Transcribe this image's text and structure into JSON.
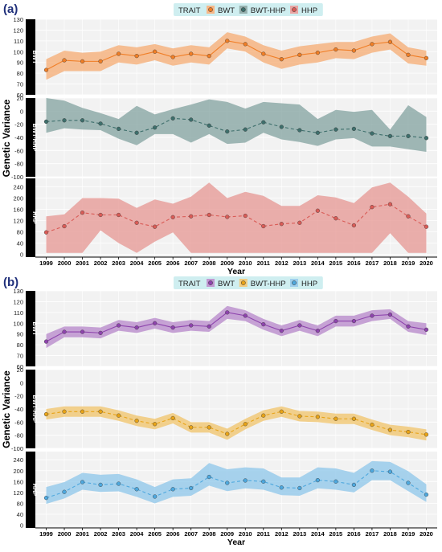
{
  "chart_data": [
    {
      "type": "line",
      "panel_label": "(a)",
      "legend_title": "TRAIT",
      "legend_position": "top",
      "xlabel": "Year",
      "ylabel": "Genetic Variance",
      "x": [
        1999,
        2000,
        2001,
        2002,
        2003,
        2004,
        2005,
        2006,
        2007,
        2008,
        2009,
        2010,
        2011,
        2012,
        2013,
        2014,
        2015,
        2016,
        2017,
        2018,
        2019,
        2020
      ],
      "series": [
        {
          "name": "BWT",
          "facet": "BWT",
          "color": "#f07e26",
          "line_style": "solid",
          "ylim": [
            60,
            130
          ],
          "yticks": [
            60,
            70,
            80,
            90,
            100,
            110,
            120,
            130
          ],
          "values": [
            83,
            92,
            91,
            91,
            98,
            96,
            100,
            95,
            98,
            96,
            110,
            107,
            98,
            93,
            97,
            99,
            102,
            101,
            107,
            109,
            97,
            94
          ],
          "lower": [
            74,
            82,
            82,
            82,
            90,
            88,
            92,
            87,
            90,
            88,
            103,
            100,
            90,
            84,
            88,
            90,
            94,
            93,
            99,
            102,
            89,
            87
          ],
          "upper": [
            93,
            101,
            99,
            100,
            106,
            104,
            107,
            103,
            106,
            104,
            118,
            114,
            106,
            101,
            105,
            107,
            109,
            109,
            114,
            117,
            104,
            101
          ]
        },
        {
          "name": "BWT-HHP",
          "facet": "BWT-HHP",
          "color": "#3e6f6c",
          "line_style": "dashed",
          "ylim": [
            -100,
            20
          ],
          "yticks": [
            -100,
            -80,
            -60,
            -40,
            -20,
            0,
            20
          ],
          "values": [
            -16,
            -14,
            -14,
            -19,
            -27,
            -33,
            -25,
            -11,
            -13,
            -22,
            -31,
            -28,
            -17,
            -24,
            -29,
            -33,
            -28,
            -27,
            -34,
            -38,
            -38,
            -41
          ],
          "lower": [
            -33,
            -26,
            -28,
            -29,
            -42,
            -52,
            -35,
            -35,
            -48,
            -35,
            -50,
            -48,
            -33,
            -43,
            -47,
            -53,
            -43,
            -41,
            -54,
            -54,
            -58,
            -62
          ],
          "upper": [
            20,
            16,
            5,
            -3,
            -12,
            8,
            -5,
            3,
            10,
            18,
            14,
            4,
            14,
            12,
            10,
            -12,
            2,
            -1,
            2,
            -28,
            9,
            -9
          ]
        },
        {
          "name": "HHP",
          "facet": "HHP",
          "color": "#d95c57",
          "line_style": "dashed",
          "ylim": [
            -10,
            270
          ],
          "yticks": [
            0,
            40,
            80,
            120,
            160,
            200,
            240
          ],
          "values": [
            78,
            100,
            148,
            140,
            140,
            112,
            98,
            132,
            135,
            140,
            133,
            137,
            100,
            108,
            112,
            155,
            128,
            103,
            168,
            178,
            135,
            98
          ],
          "lower": [
            5,
            5,
            5,
            85,
            40,
            5,
            45,
            78,
            5,
            5,
            5,
            5,
            5,
            5,
            5,
            5,
            5,
            5,
            5,
            75,
            5,
            5
          ],
          "upper": [
            135,
            142,
            200,
            200,
            198,
            165,
            195,
            180,
            205,
            255,
            200,
            222,
            208,
            172,
            172,
            210,
            202,
            182,
            238,
            255,
            205,
            145
          ]
        }
      ]
    },
    {
      "type": "line",
      "panel_label": "(b)",
      "legend_title": "TRAIT",
      "legend_position": "top",
      "xlabel": "Year",
      "ylabel": "Genetic Variance",
      "x": [
        1999,
        2000,
        2001,
        2002,
        2003,
        2004,
        2005,
        2006,
        2007,
        2008,
        2009,
        2010,
        2011,
        2012,
        2013,
        2014,
        2015,
        2016,
        2017,
        2018,
        2019,
        2020
      ],
      "series": [
        {
          "name": "BWT",
          "facet": "BWT",
          "color": "#8e44ad",
          "line_style": "solid",
          "ylim": [
            60,
            130
          ],
          "yticks": [
            60,
            70,
            80,
            90,
            100,
            110,
            120,
            130
          ],
          "values": [
            83,
            92,
            92,
            91,
            98,
            96,
            100,
            96,
            98,
            97,
            110,
            107,
            99,
            93,
            98,
            93,
            102,
            102,
            107,
            108,
            97,
            94
          ],
          "lower": [
            77,
            87,
            87,
            86,
            93,
            91,
            95,
            91,
            93,
            92,
            104,
            102,
            94,
            88,
            93,
            88,
            97,
            97,
            102,
            104,
            92,
            89
          ],
          "upper": [
            90,
            97,
            97,
            96,
            103,
            101,
            105,
            101,
            103,
            102,
            116,
            112,
            104,
            98,
            103,
            98,
            107,
            107,
            112,
            113,
            102,
            100
          ]
        },
        {
          "name": "BWT-HHP",
          "facet": "BWT-HHP",
          "color": "#e8a317",
          "line_style": "dashed",
          "ylim": [
            -100,
            20
          ],
          "yticks": [
            -100,
            -80,
            -60,
            -40,
            -20,
            0,
            20
          ],
          "values": [
            -48,
            -44,
            -44,
            -44,
            -50,
            -58,
            -63,
            -54,
            -68,
            -68,
            -78,
            -63,
            -50,
            -44,
            -51,
            -52,
            -55,
            -55,
            -64,
            -72,
            -75,
            -79
          ],
          "lower": [
            -56,
            -52,
            -52,
            -52,
            -58,
            -66,
            -71,
            -62,
            -76,
            -76,
            -87,
            -71,
            -58,
            -52,
            -59,
            -60,
            -63,
            -63,
            -72,
            -80,
            -83,
            -88
          ],
          "upper": [
            -40,
            -36,
            -36,
            -36,
            -42,
            -50,
            -55,
            -46,
            -60,
            -60,
            -70,
            -55,
            -42,
            -36,
            -43,
            -44,
            -47,
            -47,
            -56,
            -64,
            -67,
            -71
          ]
        },
        {
          "name": "HHP",
          "facet": "HHP",
          "color": "#4ea8de",
          "line_style": "dashed",
          "ylim": [
            -10,
            270
          ],
          "yticks": [
            0,
            40,
            80,
            120,
            160,
            200,
            240
          ],
          "values": [
            100,
            122,
            158,
            148,
            152,
            132,
            105,
            132,
            136,
            177,
            155,
            164,
            160,
            138,
            136,
            165,
            160,
            148,
            200,
            196,
            155,
            112
          ],
          "lower": [
            78,
            98,
            130,
            122,
            124,
            104,
            80,
            104,
            108,
            145,
            125,
            135,
            130,
            110,
            108,
            135,
            130,
            120,
            165,
            165,
            125,
            85
          ],
          "upper": [
            140,
            158,
            192,
            185,
            188,
            168,
            140,
            168,
            172,
            228,
            205,
            212,
            208,
            175,
            175,
            212,
            208,
            192,
            235,
            232,
            198,
            150
          ]
        }
      ]
    }
  ]
}
